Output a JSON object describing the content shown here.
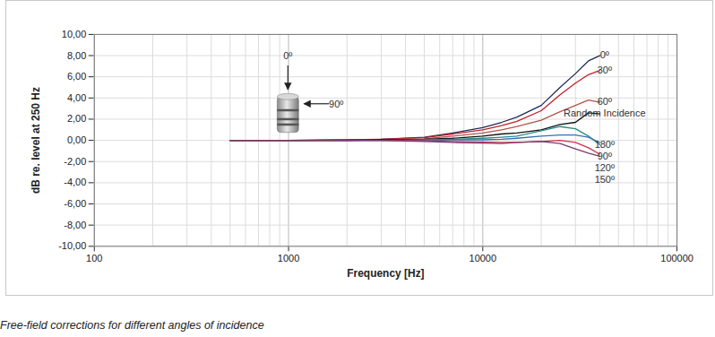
{
  "chart_data": {
    "type": "line",
    "caption": "Free-field corrections for different angles of incidence",
    "x_label": "Frequency [Hz]",
    "y_label": "dB re. level at 250 Hz",
    "log": "x",
    "grid": true,
    "xlim": [
      100,
      100000
    ],
    "xticks": [
      100,
      1000,
      10000,
      100000
    ],
    "ylim": [
      -10,
      10
    ],
    "yticks": [
      {
        "value": -10,
        "label": "-10,00"
      },
      {
        "value": -8,
        "label": "-8,00"
      },
      {
        "value": -6,
        "label": "-6,00"
      },
      {
        "value": -4,
        "label": "-4,00"
      },
      {
        "value": -2,
        "label": "-2,00"
      },
      {
        "value": 0,
        "label": "0,00"
      },
      {
        "value": 2,
        "label": "2,00"
      },
      {
        "value": 4,
        "label": "4,00"
      },
      {
        "value": 6,
        "label": "6,00"
      },
      {
        "value": 8,
        "label": "8,00"
      },
      {
        "value": 10,
        "label": "10,00"
      }
    ],
    "annotations": [
      "0º",
      "90º"
    ],
    "x": [
      500,
      1000,
      2000,
      3000,
      5000,
      7000,
      10000,
      12500,
      15000,
      20000,
      25000,
      30000,
      35000,
      40000
    ],
    "series": [
      {
        "name": "0º",
        "color": "#1f2a5c",
        "values": [
          0,
          0,
          0.05,
          0.1,
          0.3,
          0.7,
          1.2,
          1.7,
          2.2,
          3.3,
          5.0,
          6.3,
          7.5,
          8.0
        ]
      },
      {
        "name": "30º",
        "color": "#c0202a",
        "values": [
          0,
          0,
          0.05,
          0.1,
          0.25,
          0.6,
          1.0,
          1.4,
          1.8,
          2.8,
          4.3,
          5.4,
          6.2,
          6.6
        ]
      },
      {
        "name": "60º",
        "color": "#b0554a",
        "values": [
          0,
          0,
          0,
          0.05,
          0.15,
          0.4,
          0.7,
          1.0,
          1.3,
          1.9,
          2.7,
          3.3,
          3.8,
          3.6
        ]
      },
      {
        "name": "Random Incidence",
        "color": "#111111",
        "values": [
          0,
          0,
          0,
          0.05,
          0.1,
          0.2,
          0.4,
          0.6,
          0.7,
          1.0,
          1.5,
          1.7,
          2.6,
          2.5
        ]
      },
      {
        "name": "180º",
        "color": "#2a8a8a",
        "values": [
          0,
          0,
          0,
          0,
          0.05,
          0.1,
          0.2,
          0.3,
          0.4,
          0.9,
          1.3,
          1.1,
          0.4,
          -0.4
        ]
      },
      {
        "name": "90º",
        "color": "#3a6fb0",
        "values": [
          0,
          0,
          0,
          0,
          0,
          0.05,
          0.05,
          0.1,
          0.2,
          0.4,
          0.5,
          0.5,
          0.3,
          -0.2
        ]
      },
      {
        "name": "120º",
        "color": "#d0304a",
        "values": [
          0,
          0,
          0,
          0,
          -0.05,
          -0.1,
          -0.15,
          -0.2,
          -0.2,
          -0.1,
          0,
          -0.2,
          -0.7,
          -1.3
        ]
      },
      {
        "name": "150º",
        "color": "#7a3a6a",
        "values": [
          0,
          0,
          0,
          0,
          -0.1,
          -0.2,
          -0.25,
          -0.3,
          -0.2,
          -0.1,
          -0.3,
          -0.8,
          -1.2,
          -1.5
        ]
      }
    ]
  }
}
